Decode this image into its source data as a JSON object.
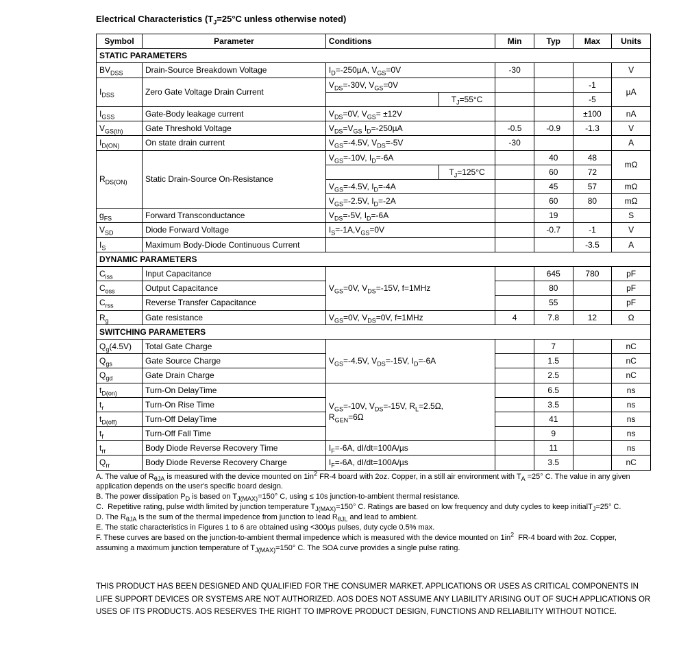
{
  "title": "Electrical Characteristics (T_J=25°C unless otherwise noted)",
  "headers": {
    "symbol": "Symbol",
    "parameter": "Parameter",
    "conditions": "Conditions",
    "min": "Min",
    "typ": "Typ",
    "max": "Max",
    "units": "Units"
  },
  "sections": {
    "static": "STATIC PARAMETERS",
    "dynamic": "DYNAMIC PARAMETERS",
    "switching": "SWITCHING PARAMETERS"
  },
  "rows": {
    "bvdss": {
      "param": "Drain-Source Breakdown Voltage",
      "cond": "I_D=-250µA, V_GS=0V",
      "min": "-30",
      "typ": "",
      "max": "",
      "units": "V"
    },
    "idss1": {
      "param": "Zero Gate Voltage Drain Current",
      "cond": "V_DS=-30V, V_GS=0V",
      "min": "",
      "typ": "",
      "max": "-1",
      "units": "µA"
    },
    "idss2": {
      "cond2": "T_J=55°C",
      "min": "",
      "typ": "",
      "max": "-5"
    },
    "igss": {
      "param": "Gate-Body leakage current",
      "cond": "V_DS=0V, V_GS= ±12V",
      "min": "",
      "typ": "",
      "max": "±100",
      "units": "nA"
    },
    "vgsth": {
      "param": "Gate Threshold Voltage",
      "cond": "V_DS=V_GS I_D=-250µA",
      "min": "-0.5",
      "typ": "-0.9",
      "max": "-1.3",
      "units": "V"
    },
    "idon": {
      "param": "On state drain current",
      "cond": "V_GS=-4.5V, V_DS=-5V",
      "min": "-30",
      "typ": "",
      "max": "",
      "units": "A"
    },
    "rdson1": {
      "param": "Static Drain-Source On-Resistance",
      "cond": "V_GS=-10V, I_D=-6A",
      "min": "",
      "typ": "40",
      "max": "48",
      "units": "mΩ"
    },
    "rdson2": {
      "cond2": "T_J=125°C",
      "min": "",
      "typ": "60",
      "max": "72"
    },
    "rdson3": {
      "cond": "V_GS=-4.5V, I_D=-4A",
      "min": "",
      "typ": "45",
      "max": "57",
      "units": "mΩ"
    },
    "rdson4": {
      "cond": "V_GS=-2.5V, I_D=-2A",
      "min": "",
      "typ": "60",
      "max": "80",
      "units": "mΩ"
    },
    "gfs": {
      "param": "Forward Transconductance",
      "cond": "V_DS=-5V, I_D=-6A",
      "min": "",
      "typ": "19",
      "max": "",
      "units": "S"
    },
    "vsd": {
      "param": "Diode Forward Voltage",
      "cond": "I_S=-1A,V_GS=0V",
      "min": "",
      "typ": "-0.7",
      "max": "-1",
      "units": "V"
    },
    "is": {
      "param": "Maximum Body-Diode Continuous Current",
      "cond": "",
      "min": "",
      "typ": "",
      "max": "-3.5",
      "units": "A"
    },
    "ciss": {
      "param": "Input Capacitance",
      "cond": "V_GS=0V, V_DS=-15V, f=1MHz",
      "min": "",
      "typ": "645",
      "max": "780",
      "units": "pF"
    },
    "coss": {
      "param": "Output Capacitance",
      "min": "",
      "typ": "80",
      "max": "",
      "units": "pF"
    },
    "crss": {
      "param": "Reverse Transfer Capacitance",
      "min": "",
      "typ": "55",
      "max": "",
      "units": "pF"
    },
    "rg": {
      "param": "Gate resistance",
      "cond": "V_GS=0V, V_DS=0V, f=1MHz",
      "min": "4",
      "typ": "7.8",
      "max": "12",
      "units": "Ω"
    },
    "qg": {
      "param": "Total Gate Charge",
      "cond": "V_GS=-4.5V, V_DS=-15V, I_D=-6A",
      "min": "",
      "typ": "7",
      "max": "",
      "units": "nC"
    },
    "qgs": {
      "param": "Gate Source Charge",
      "min": "",
      "typ": "1.5",
      "max": "",
      "units": "nC"
    },
    "qgd": {
      "param": "Gate Drain Charge",
      "min": "",
      "typ": "2.5",
      "max": "",
      "units": "nC"
    },
    "tdon": {
      "param": "Turn-On DelayTime",
      "cond": "V_GS=-10V, V_DS=-15V, R_L=2.5Ω, R_GEN=6Ω",
      "min": "",
      "typ": "6.5",
      "max": "",
      "units": "ns"
    },
    "tr": {
      "param": "Turn-On Rise Time",
      "min": "",
      "typ": "3.5",
      "max": "",
      "units": "ns"
    },
    "tdoff": {
      "param": "Turn-Off DelayTime",
      "min": "",
      "typ": "41",
      "max": "",
      "units": "ns"
    },
    "tf": {
      "param": "Turn-Off Fall Time",
      "min": "",
      "typ": "9",
      "max": "",
      "units": "ns"
    },
    "trr": {
      "param": "Body Diode Reverse Recovery Time",
      "cond": "I_F=-6A, dI/dt=100A/µs",
      "min": "",
      "typ": "11",
      "max": "",
      "units": "ns"
    },
    "qrr": {
      "param": "Body Diode Reverse Recovery Charge",
      "cond": "I_F=-6A, dI/dt=100A/µs",
      "min": "",
      "typ": "3.5",
      "max": "",
      "units": "nC"
    }
  },
  "notes": {
    "a": "A. The value of R_θJA is measured with the device mounted on 1in² FR-4 board with 2oz. Copper, in a still air environment with T_A =25° C. The value in any given application depends on the user's specific board design.",
    "b": "B. The power dissipation P_D is based on T_J(MAX)=150° C, using ≤ 10s junction-to-ambient thermal resistance.",
    "c": "C.  Repetitive rating, pulse width limited by junction temperature T_J(MAX)=150° C. Ratings are based on low frequency and duty cycles to keep initialT_J=25° C.",
    "d": "D. The R_θJA is the sum of the thermal impedence from junction to lead R_θJL and lead to ambient.",
    "e": "E. The static characteristics in Figures 1 to 6 are obtained using <300µs pulses, duty cycle 0.5% max.",
    "f": "F. These curves are based on the junction-to-ambient thermal impedence which is measured with the device mounted on 1in²  FR-4 board with 2oz. Copper, assuming a maximum junction temperature of T_J(MAX)=150° C. The SOA curve provides a single pulse rating."
  },
  "disclaimer": "THIS PRODUCT HAS BEEN DESIGNED AND QUALIFIED FOR THE CONSUMER MARKET. APPLICATIONS OR USES AS CRITICAL COMPONENTS IN LIFE SUPPORT DEVICES OR SYSTEMS ARE NOT AUTHORIZED. AOS DOES NOT ASSUME ANY LIABILITY ARISING OUT OF SUCH APPLICATIONS OR USES OF ITS PRODUCTS.  AOS RESERVES THE RIGHT TO IMPROVE PRODUCT DESIGN, FUNCTIONS AND RELIABILITY WITHOUT NOTICE."
}
